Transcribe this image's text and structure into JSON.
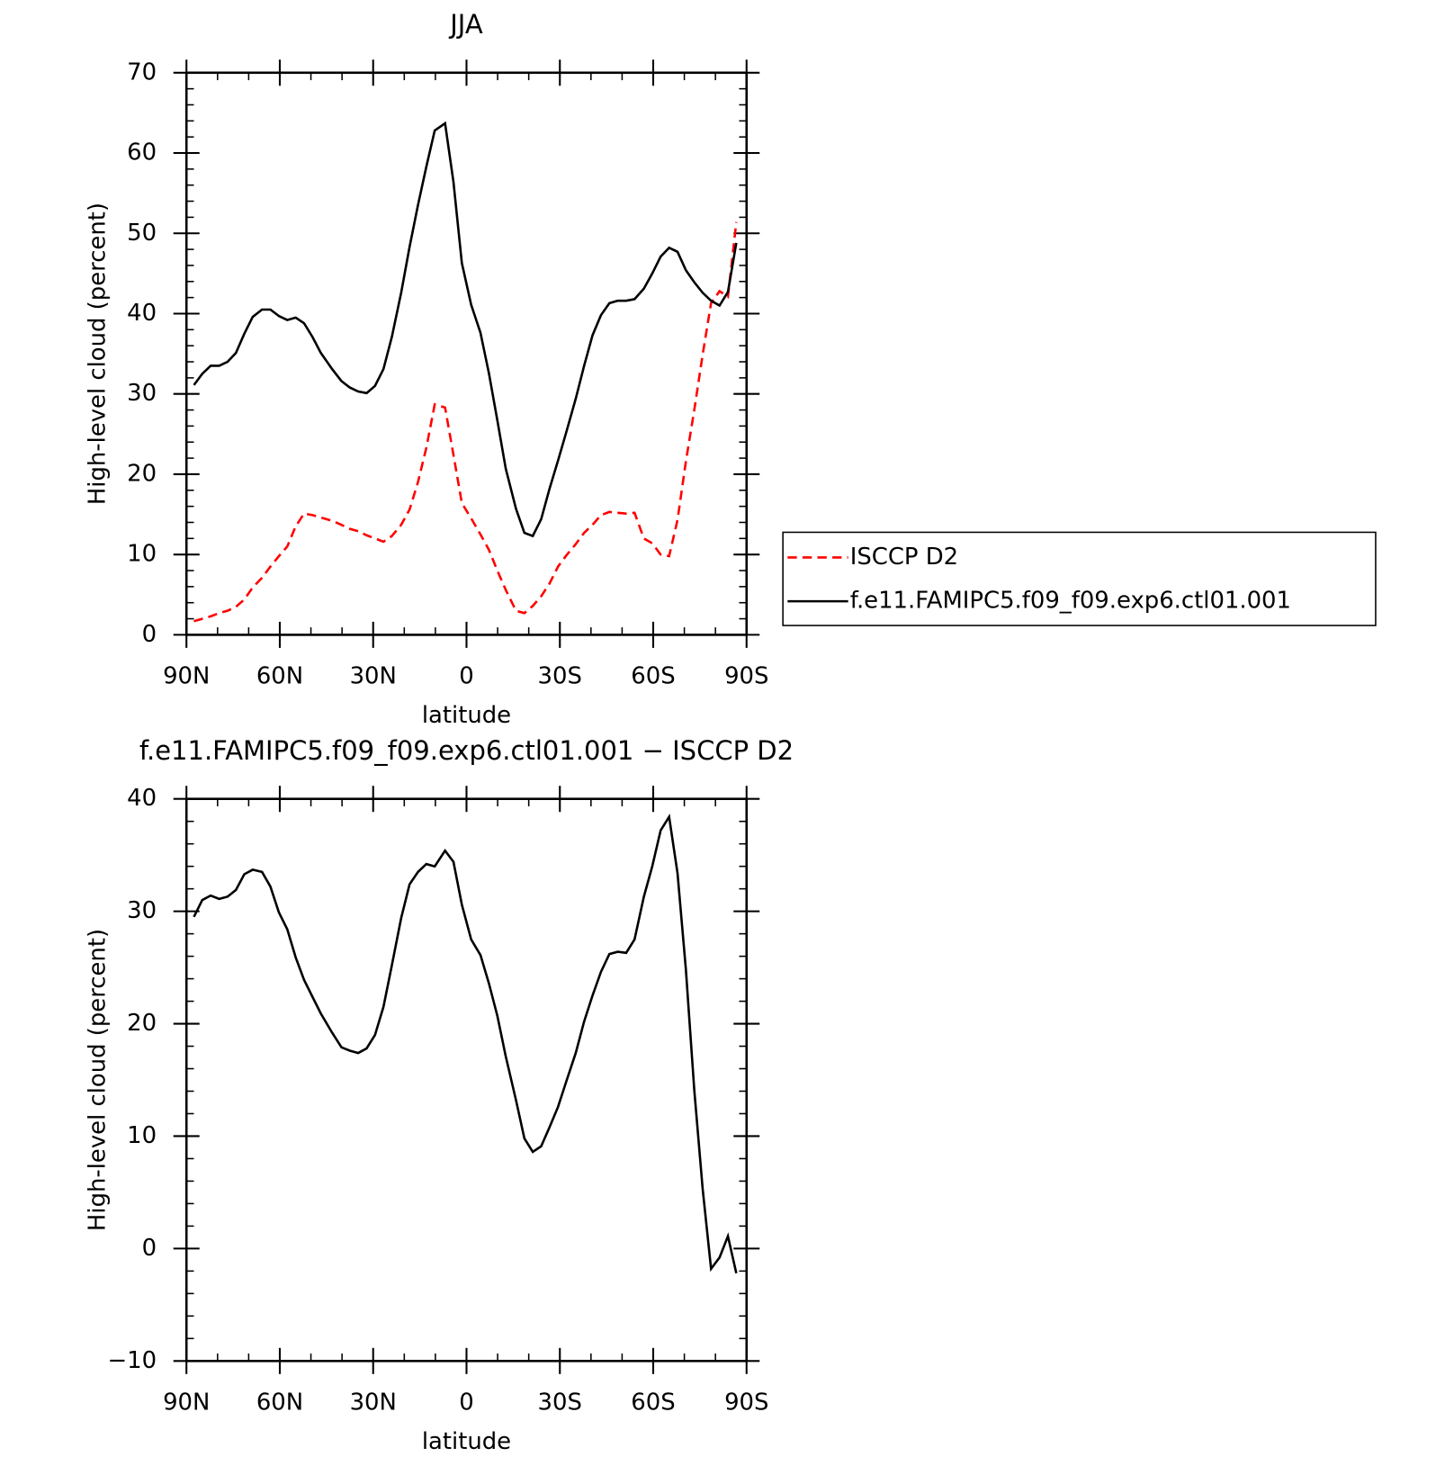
{
  "chart_data": [
    {
      "type": "line",
      "title": "JJA",
      "xlabel": "latitude",
      "ylabel": "High-level cloud (percent)",
      "x": [
        87.6,
        84.9,
        82.2,
        79.5,
        76.8,
        74.1,
        71.4,
        68.7,
        65.7,
        63.0,
        60.3,
        57.6,
        54.9,
        52.2,
        49.5,
        46.8,
        43.2,
        40.2,
        37.5,
        34.8,
        32.1,
        29.4,
        26.7,
        24.0,
        21.0,
        18.3,
        15.6,
        12.9,
        10.2,
        6.9,
        4.2,
        1.5,
        -1.5,
        -4.5,
        -7.2,
        -9.9,
        -12.6,
        -15.9,
        -18.6,
        -21.3,
        -24.0,
        -26.7,
        -29.4,
        -32.1,
        -35.1,
        -37.8,
        -40.5,
        -43.2,
        -45.9,
        -48.6,
        -51.3,
        -54.0,
        -57.0,
        -59.7,
        -62.4,
        -65.1,
        -67.8,
        -70.5,
        -73.2,
        -75.9,
        -78.6,
        -81.3,
        -84.0,
        -86.7
      ],
      "series": [
        {
          "name": "ISCCP D2",
          "color": "#ff0000",
          "dashed": true,
          "values": [
            1.7,
            2.0,
            2.3,
            2.7,
            3.0,
            3.5,
            4.4,
            5.9,
            7.1,
            8.5,
            9.8,
            11.0,
            13.5,
            15.1,
            14.9,
            14.6,
            14.2,
            13.7,
            13.2,
            12.9,
            12.4,
            12.0,
            11.6,
            12.3,
            13.7,
            15.6,
            19.0,
            23.3,
            28.7,
            28.3,
            22.4,
            16.4,
            14.5,
            12.5,
            10.6,
            8.0,
            5.6,
            3.0,
            2.7,
            3.6,
            4.8,
            6.4,
            8.5,
            9.9,
            11.3,
            12.7,
            13.7,
            14.9,
            15.3,
            15.2,
            15.1,
            15.2,
            12.0,
            11.4,
            10.0,
            9.8,
            14.3,
            21.6,
            28.0,
            34.9,
            41.3,
            42.8,
            42.1,
            51.4
          ]
        },
        {
          "name": "f.e11.FAMIPC5.f09_f09.exp6.ctl01.001",
          "color": "#000000",
          "dashed": false,
          "values": [
            31.1,
            32.5,
            33.5,
            33.5,
            34.0,
            35.1,
            37.5,
            39.6,
            40.5,
            40.5,
            39.7,
            39.2,
            39.5,
            38.8,
            37.1,
            35.1,
            33.1,
            31.6,
            30.8,
            30.3,
            30.1,
            31.0,
            33.1,
            37.1,
            42.6,
            48.3,
            53.5,
            58.3,
            62.8,
            63.7,
            56.4,
            46.3,
            41.1,
            37.6,
            32.6,
            26.7,
            20.7,
            15.7,
            12.7,
            12.3,
            14.4,
            18.2,
            21.7,
            25.3,
            29.4,
            33.5,
            37.3,
            39.8,
            41.3,
            41.6,
            41.6,
            41.8,
            43.1,
            45.0,
            47.1,
            48.2,
            47.7,
            45.4,
            43.9,
            42.6,
            41.6,
            41.0,
            42.7,
            48.8
          ]
        }
      ],
      "xlim": [
        90,
        -90
      ],
      "xticks": [
        {
          "value": 90,
          "label": "90N"
        },
        {
          "value": 60,
          "label": "60N"
        },
        {
          "value": 30,
          "label": "30N"
        },
        0,
        {
          "value": -30,
          "label": "30S"
        },
        {
          "value": -60,
          "label": "60S"
        },
        {
          "value": -90,
          "label": "90S"
        }
      ],
      "ylim": [
        0,
        70
      ],
      "yticks": [
        0,
        10,
        20,
        30,
        40,
        50,
        60,
        70
      ],
      "legend": "right"
    },
    {
      "type": "line",
      "title": "f.e11.FAMIPC5.f09_f09.exp6.ctl01.001 − ISCCP D2",
      "xlabel": "latitude",
      "ylabel": "High-level cloud (percent)",
      "x": [
        87.6,
        84.9,
        82.2,
        79.5,
        76.8,
        74.1,
        71.4,
        68.7,
        65.7,
        63.0,
        60.3,
        57.6,
        54.9,
        52.2,
        49.5,
        46.8,
        43.2,
        40.2,
        37.5,
        34.8,
        32.1,
        29.4,
        26.7,
        24.0,
        21.0,
        18.3,
        15.6,
        12.9,
        10.2,
        6.9,
        4.2,
        1.5,
        -1.5,
        -4.5,
        -7.2,
        -9.9,
        -12.6,
        -15.9,
        -18.6,
        -21.3,
        -24.0,
        -26.7,
        -29.4,
        -32.1,
        -35.1,
        -37.8,
        -40.5,
        -43.2,
        -45.9,
        -48.6,
        -51.3,
        -54.0,
        -57.0,
        -59.7,
        -62.4,
        -65.1,
        -67.8,
        -70.5,
        -73.2,
        -75.9,
        -78.6,
        -81.3,
        -84.0,
        -86.7
      ],
      "series": [
        {
          "color": "#000000",
          "dashed": false,
          "values": [
            29.5,
            31.0,
            31.4,
            31.1,
            31.3,
            31.9,
            33.3,
            33.7,
            33.5,
            32.2,
            29.9,
            28.4,
            25.9,
            23.9,
            22.4,
            20.9,
            19.2,
            17.9,
            17.6,
            17.4,
            17.8,
            19.0,
            21.5,
            25.2,
            29.4,
            32.4,
            33.5,
            34.2,
            34.0,
            35.4,
            34.4,
            30.6,
            27.5,
            26.1,
            23.6,
            20.7,
            17.1,
            13.2,
            9.8,
            8.6,
            9.1,
            10.8,
            12.6,
            14.9,
            17.4,
            20.2,
            22.5,
            24.6,
            26.2,
            26.4,
            26.3,
            27.5,
            31.3,
            34.0,
            37.2,
            38.4,
            33.4,
            24.8,
            14.1,
            5.3,
            -1.8,
            -0.8,
            1.1,
            -2.2
          ]
        }
      ],
      "xlim": [
        90,
        -90
      ],
      "xticks": [
        {
          "value": 90,
          "label": "90N"
        },
        {
          "value": 60,
          "label": "60N"
        },
        {
          "value": 30,
          "label": "30N"
        },
        0,
        {
          "value": -30,
          "label": "30S"
        },
        {
          "value": -60,
          "label": "60S"
        },
        {
          "value": -90,
          "label": "90S"
        }
      ],
      "ylim": [
        -10,
        40
      ],
      "yticks": [
        {
          "value": -10,
          "label": "−10"
        },
        0,
        10,
        20,
        30,
        40
      ]
    }
  ]
}
